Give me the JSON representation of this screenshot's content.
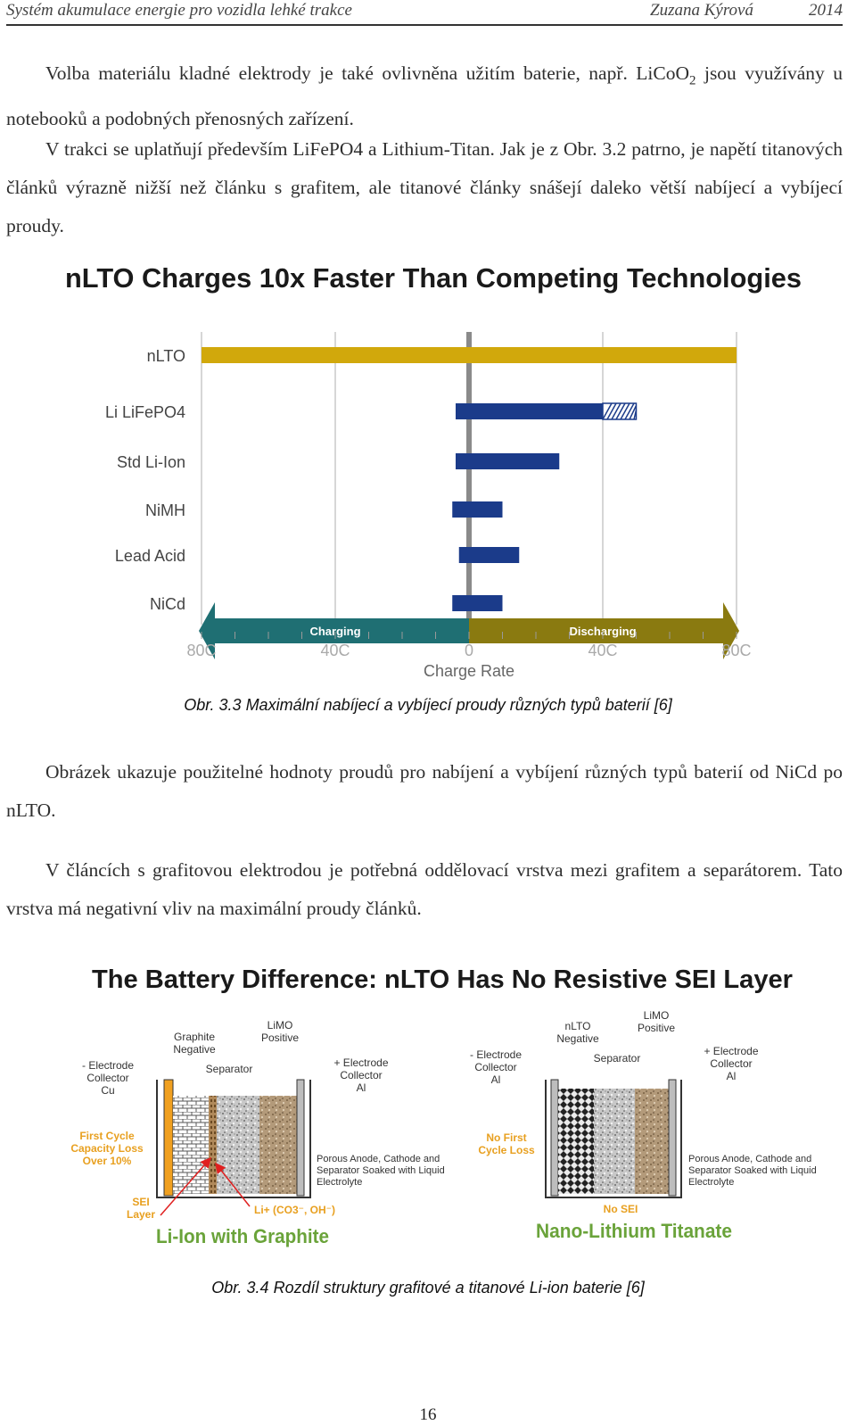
{
  "header": {
    "title": "Systém akumulace energie pro vozidla lehké trakce",
    "author": "Zuzana Kýrová",
    "year": "2014"
  },
  "para1": {
    "text_before": "Volba materiálu kladné elektrody je také ovlivněna užitím baterie, např. LiCoO",
    "sub": "2",
    "text_after": " jsou využívány u notebooků a podobných přenosných zařízení."
  },
  "para2": {
    "text": "V trakci se uplatňují především LiFePO4 a Lithium-Titan. Jak je z Obr. 3.2 patrno, je napětí titanových článků výrazně nižší než článku s grafitem, ale titanové články snášejí daleko větší nabíjecí a vybíjecí proudy."
  },
  "fig1": {
    "caption": "Obr. 3.3  Maximální nabíjecí a vybíjecí proudy různých typů baterií [6]",
    "chart_data": {
      "type": "bar",
      "title": "nLTO Charges 10x Faster Than Competing Technologies",
      "xlabel": "Charge Rate",
      "xlim": [
        -80,
        80
      ],
      "ticks": [
        {
          "v": -80,
          "label": "80C"
        },
        {
          "v": -40,
          "label": "40C"
        },
        {
          "v": 0,
          "label": "0"
        },
        {
          "v": 40,
          "label": "40C"
        },
        {
          "v": 80,
          "label": "80C"
        }
      ],
      "arrow_labels": {
        "left": "Charging",
        "right": "Discharging"
      },
      "categories": [
        "nLTO",
        "Li LiFePO4",
        "Std Li-Ion",
        "NiMH",
        "Lead Acid",
        "NiCd"
      ],
      "series": [
        {
          "name": "",
          "charge": [
            80,
            4,
            4,
            5,
            3,
            5
          ],
          "discharge": [
            80,
            40,
            27,
            10,
            15,
            10
          ],
          "hatched_extra": [
            0,
            10,
            0,
            0,
            0,
            0
          ]
        }
      ],
      "colors": {
        "nlto": "#d1a80c",
        "bars": "#1b3b8a",
        "charging": "#1f6f73",
        "discharging": "#8a7a10",
        "axis": "#8a8a8a"
      }
    }
  },
  "para3": {
    "text": "Obrázek ukazuje použitelné hodnoty proudů pro nabíjení a vybíjení různých typů baterií od NiCd po nLTO."
  },
  "para4": {
    "text": "V článcích s grafitovou elektrodou je potřebná oddělovací vrstva mezi grafitem a separátorem. Tato vrstva má negativní vliv na maximální proudy článků."
  },
  "fig2": {
    "title": "The Battery Difference: nLTO Has No Resistive SEI Layer",
    "caption": "Obr. 3.4  Rozdíl struktury grafitové a titanové Li-ion baterie [6]",
    "left": {
      "name": "Li-Ion with Graphite",
      "graphite": [
        "Graphite",
        "Negative"
      ],
      "limo": [
        "LiMO",
        "Positive"
      ],
      "neg_collector": [
        "- Electrode",
        "Collector",
        "Cu"
      ],
      "separator": "Separator",
      "pos_collector": [
        "+ Electrode",
        "Collector",
        "Al"
      ],
      "loss": [
        "First Cycle",
        "Capacity Loss",
        "Over 10%"
      ],
      "porous": [
        "Porous Anode, Cathode and",
        "Separator Soaked with Liquid",
        "Electrolyte"
      ],
      "sei": [
        "SEI",
        "Layer"
      ],
      "ions": "Li+ (CO3⁻, OH⁻)"
    },
    "right": {
      "name": "Nano-Lithium Titanate",
      "nlto": [
        "nLTO",
        "Negative"
      ],
      "limo": [
        "LiMO",
        "Positive"
      ],
      "neg_collector": [
        "- Electrode",
        "Collector",
        "Al"
      ],
      "separator": "Separator",
      "pos_collector": [
        "+ Electrode",
        "Collector",
        "Al"
      ],
      "loss": [
        "No First",
        "Cycle Loss"
      ],
      "porous": [
        "Porous Anode, Cathode and",
        "Separator Soaked with Liquid",
        "Electrolyte"
      ],
      "sei": "No SEI"
    }
  },
  "page_number": "16"
}
